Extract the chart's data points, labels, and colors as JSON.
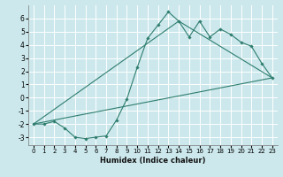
{
  "title": "",
  "xlabel": "Humidex (Indice chaleur)",
  "bg_color": "#cce8ec",
  "grid_color": "#ffffff",
  "line_color": "#2e7d6e",
  "xlim": [
    -0.5,
    23.5
  ],
  "ylim": [
    -3.6,
    7.0
  ],
  "yticks": [
    -3,
    -2,
    -1,
    0,
    1,
    2,
    3,
    4,
    5,
    6
  ],
  "xticks": [
    0,
    1,
    2,
    3,
    4,
    5,
    6,
    7,
    8,
    9,
    10,
    11,
    12,
    13,
    14,
    15,
    16,
    17,
    18,
    19,
    20,
    21,
    22,
    23
  ],
  "series1_x": [
    0,
    1,
    2,
    3,
    4,
    5,
    6,
    7,
    8,
    9,
    10,
    11,
    12,
    13,
    14,
    15,
    16,
    17,
    18,
    19,
    20,
    21,
    22,
    23
  ],
  "series1_y": [
    -2.0,
    -2.0,
    -1.8,
    -2.3,
    -3.0,
    -3.1,
    -3.0,
    -2.9,
    -1.7,
    -0.1,
    2.3,
    4.5,
    5.5,
    6.5,
    5.8,
    4.6,
    5.8,
    4.6,
    5.2,
    4.8,
    4.2,
    3.9,
    2.6,
    1.5
  ],
  "series2_x": [
    0,
    23
  ],
  "series2_y": [
    -2.0,
    1.5
  ],
  "series3_x": [
    0,
    14,
    23
  ],
  "series3_y": [
    -2.0,
    5.8,
    1.5
  ],
  "xlabel_fontsize": 6.0,
  "tick_fontsize_x": 5.0,
  "tick_fontsize_y": 5.5
}
